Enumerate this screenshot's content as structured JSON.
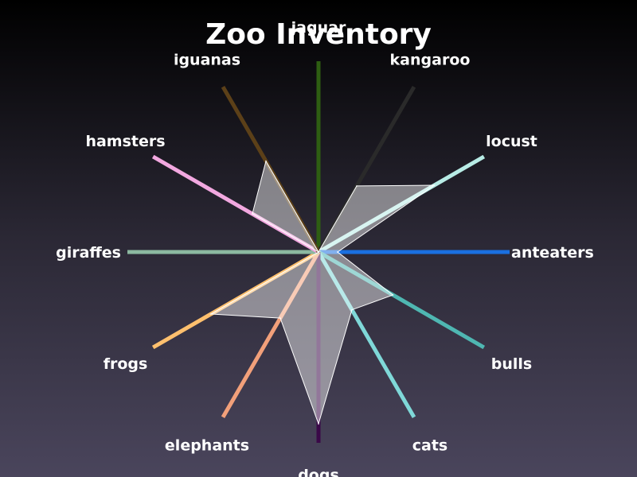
{
  "chart_data": {
    "type": "radar",
    "title": "Zoo Inventory",
    "categories": [
      "jaguar",
      "kangaroo",
      "locust",
      "anteaters",
      "bulls",
      "cats",
      "dogs",
      "elephants",
      "frogs",
      "giraffes",
      "hamsters",
      "iguanas"
    ],
    "values": [
      0,
      40,
      70,
      10,
      45,
      35,
      90,
      40,
      65,
      0,
      40,
      55
    ],
    "rmax": 100,
    "series_fill": "#ffffff",
    "series_fill_opacity": 0.45,
    "spoke_colors": [
      "#2e5e12",
      "#2a2a2a",
      "#b8ece6",
      "#1a6fe0",
      "#4fb7b2",
      "#7fd8d8",
      "#3a0848",
      "#f2a07a",
      "#ffc06e",
      "#8cb8a0",
      "#f2a8e0",
      "#5c4018"
    ]
  }
}
